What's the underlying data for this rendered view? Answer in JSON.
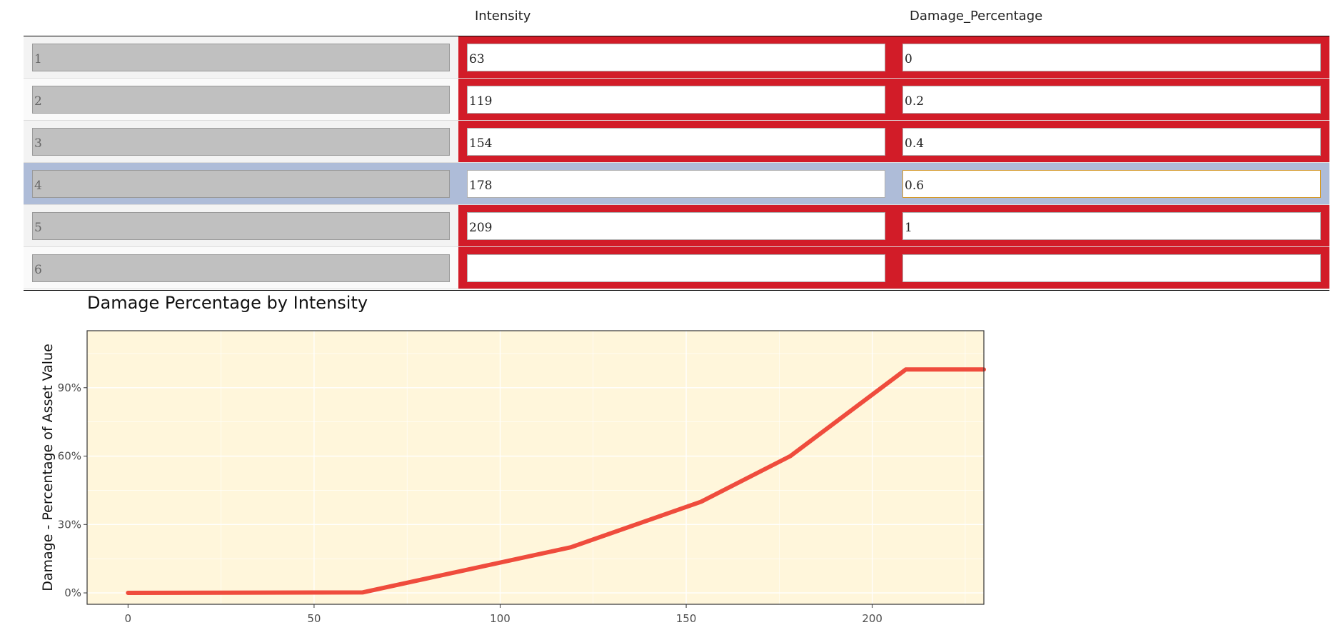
{
  "table": {
    "columns": [
      "Intensity",
      "Damage_Percentage"
    ],
    "rows": [
      {
        "index": "1",
        "intensity": "63",
        "damage": "0",
        "intensity_invalid": true,
        "damage_invalid": true,
        "selected": false
      },
      {
        "index": "2",
        "intensity": "119",
        "damage": "0.2",
        "intensity_invalid": true,
        "damage_invalid": true,
        "selected": false
      },
      {
        "index": "3",
        "intensity": "154",
        "damage": "0.4",
        "intensity_invalid": true,
        "damage_invalid": true,
        "selected": false
      },
      {
        "index": "4",
        "intensity": "178",
        "damage": "0.6",
        "intensity_invalid": false,
        "damage_invalid": false,
        "selected": true
      },
      {
        "index": "5",
        "intensity": "209",
        "damage": "1",
        "intensity_invalid": true,
        "damage_invalid": true,
        "selected": false
      },
      {
        "index": "6",
        "intensity": "",
        "damage": "",
        "intensity_invalid": true,
        "damage_invalid": true,
        "selected": false
      }
    ],
    "colors": {
      "invalid": "#d21c28",
      "selected_row": "#aebcd8",
      "focus_border": "#d49a2c"
    }
  },
  "chart_data": {
    "type": "line",
    "title": "Damage Percentage by Intensity",
    "xlabel": "",
    "ylabel": "Damage - Percentage of Asset Value",
    "x": [
      0,
      63,
      119,
      154,
      178,
      209,
      230
    ],
    "y": [
      0,
      0.002,
      0.2,
      0.4,
      0.6,
      0.98,
      0.98
    ],
    "xlim": [
      -11,
      230
    ],
    "ylim": [
      -0.05,
      1.15
    ],
    "xticks": [
      0,
      50,
      100,
      150,
      200
    ],
    "xtick_labels": [
      "0",
      "50",
      "100",
      "150",
      "200"
    ],
    "yticks": [
      0,
      0.3,
      0.6,
      0.9
    ],
    "ytick_labels": [
      "0%",
      "30%",
      "60%",
      "90%"
    ],
    "grid": true,
    "colors": {
      "line": "#ef4c3d",
      "panel": "#fff6db",
      "grid": "#ffffff"
    }
  }
}
